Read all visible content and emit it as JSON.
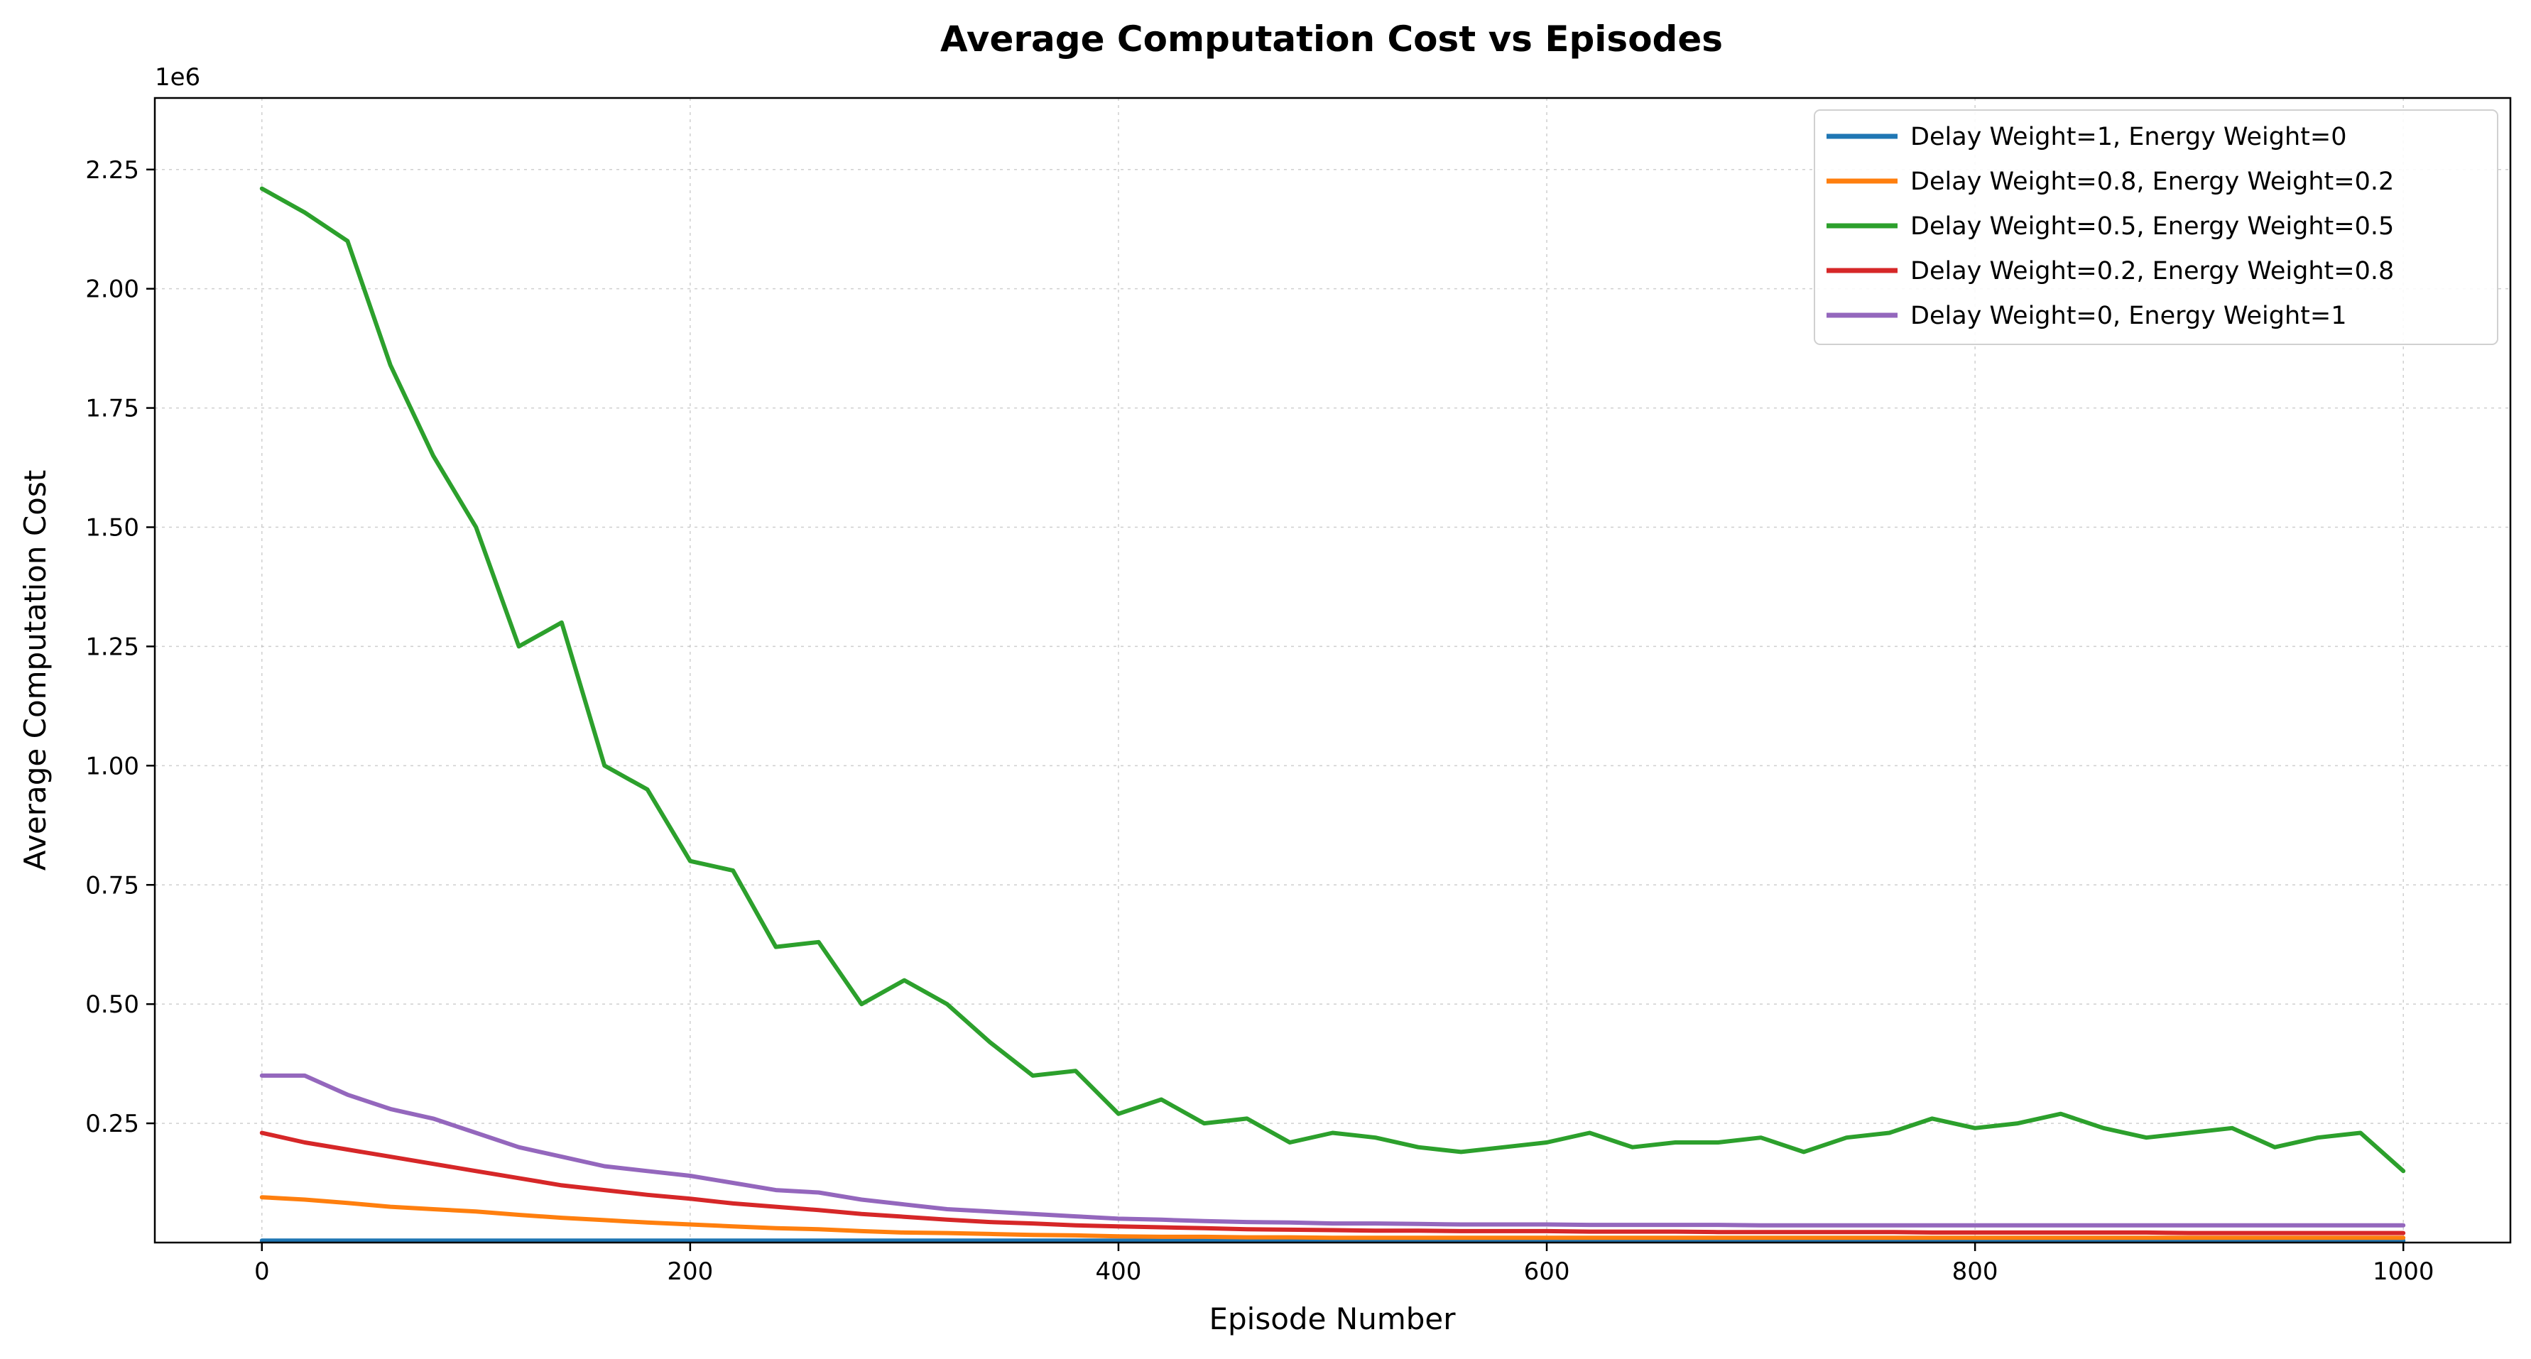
{
  "chart_data": {
    "type": "line",
    "title": "Average Computation Cost vs Episodes",
    "xlabel": "Episode Number",
    "ylabel": "Average Computation Cost",
    "y_offset_label": "1e6",
    "xlim": [
      -50,
      1050
    ],
    "ylim": [
      0,
      2.4
    ],
    "y_scale_note": "values in units of 1e6",
    "xticks": [
      0,
      200,
      400,
      600,
      800,
      1000
    ],
    "xtick_labels": [
      "0",
      "200",
      "400",
      "600",
      "800",
      "1000"
    ],
    "yticks": [
      0.25,
      0.5,
      0.75,
      1.0,
      1.25,
      1.5,
      1.75,
      2.0,
      2.25
    ],
    "ytick_labels": [
      "0.25",
      "0.50",
      "0.75",
      "1.00",
      "1.25",
      "1.50",
      "1.75",
      "2.00",
      "2.25"
    ],
    "grid": true,
    "legend_position": "top-right",
    "x": [
      0,
      20,
      40,
      60,
      80,
      100,
      120,
      140,
      160,
      180,
      200,
      220,
      240,
      260,
      280,
      300,
      320,
      340,
      360,
      380,
      400,
      420,
      440,
      460,
      480,
      500,
      520,
      540,
      560,
      580,
      600,
      620,
      640,
      660,
      680,
      700,
      720,
      740,
      760,
      780,
      800,
      820,
      840,
      860,
      880,
      900,
      920,
      940,
      960,
      980,
      1000
    ],
    "series": [
      {
        "name": "Delay Weight=1, Energy Weight=0",
        "color": "#1f77b4",
        "values": [
          0.004,
          0.004,
          0.004,
          0.004,
          0.004,
          0.004,
          0.004,
          0.004,
          0.004,
          0.004,
          0.004,
          0.004,
          0.004,
          0.004,
          0.004,
          0.004,
          0.004,
          0.004,
          0.004,
          0.004,
          0.004,
          0.004,
          0.004,
          0.004,
          0.004,
          0.004,
          0.004,
          0.004,
          0.004,
          0.004,
          0.004,
          0.004,
          0.004,
          0.004,
          0.004,
          0.004,
          0.004,
          0.004,
          0.004,
          0.004,
          0.004,
          0.004,
          0.004,
          0.004,
          0.004,
          0.004,
          0.004,
          0.004,
          0.004,
          0.004,
          0.004
        ]
      },
      {
        "name": "Delay Weight=0.8, Energy Weight=0.2",
        "color": "#ff7f0e",
        "values": [
          0.095,
          0.09,
          0.083,
          0.075,
          0.07,
          0.065,
          0.058,
          0.052,
          0.047,
          0.042,
          0.038,
          0.034,
          0.03,
          0.028,
          0.024,
          0.021,
          0.02,
          0.018,
          0.016,
          0.015,
          0.013,
          0.012,
          0.012,
          0.011,
          0.011,
          0.01,
          0.01,
          0.01,
          0.01,
          0.01,
          0.01,
          0.01,
          0.01,
          0.01,
          0.01,
          0.01,
          0.01,
          0.01,
          0.01,
          0.01,
          0.01,
          0.01,
          0.01,
          0.01,
          0.01,
          0.01,
          0.01,
          0.01,
          0.01,
          0.01,
          0.01
        ]
      },
      {
        "name": "Delay Weight=0.5, Energy Weight=0.5",
        "color": "#2ca02c",
        "values": [
          2.21,
          2.16,
          2.1,
          1.84,
          1.65,
          1.5,
          1.25,
          1.3,
          1.0,
          0.95,
          0.8,
          0.78,
          0.62,
          0.63,
          0.5,
          0.55,
          0.5,
          0.42,
          0.35,
          0.36,
          0.27,
          0.3,
          0.25,
          0.26,
          0.21,
          0.23,
          0.22,
          0.2,
          0.19,
          0.2,
          0.21,
          0.23,
          0.2,
          0.21,
          0.21,
          0.22,
          0.19,
          0.22,
          0.23,
          0.26,
          0.24,
          0.25,
          0.27,
          0.24,
          0.22,
          0.23,
          0.24,
          0.2,
          0.22,
          0.23,
          0.15
        ]
      },
      {
        "name": "Delay Weight=0.2, Energy Weight=0.8",
        "color": "#d62728",
        "values": [
          0.23,
          0.21,
          0.195,
          0.18,
          0.165,
          0.15,
          0.135,
          0.12,
          0.11,
          0.1,
          0.092,
          0.082,
          0.075,
          0.068,
          0.06,
          0.054,
          0.048,
          0.043,
          0.04,
          0.036,
          0.034,
          0.032,
          0.03,
          0.028,
          0.027,
          0.026,
          0.025,
          0.025,
          0.024,
          0.024,
          0.024,
          0.023,
          0.023,
          0.023,
          0.022,
          0.022,
          0.022,
          0.022,
          0.022,
          0.021,
          0.021,
          0.021,
          0.021,
          0.021,
          0.021,
          0.02,
          0.02,
          0.02,
          0.02,
          0.02,
          0.02
        ]
      },
      {
        "name": "Delay Weight=0, Energy Weight=1",
        "color": "#9467bd",
        "values": [
          0.35,
          0.35,
          0.31,
          0.28,
          0.26,
          0.23,
          0.2,
          0.18,
          0.16,
          0.15,
          0.14,
          0.125,
          0.11,
          0.105,
          0.09,
          0.08,
          0.07,
          0.065,
          0.06,
          0.055,
          0.05,
          0.048,
          0.045,
          0.043,
          0.042,
          0.04,
          0.04,
          0.039,
          0.038,
          0.038,
          0.038,
          0.037,
          0.037,
          0.037,
          0.037,
          0.036,
          0.036,
          0.036,
          0.036,
          0.036,
          0.036,
          0.036,
          0.036,
          0.036,
          0.036,
          0.036,
          0.036,
          0.036,
          0.036,
          0.036,
          0.036
        ]
      }
    ]
  }
}
